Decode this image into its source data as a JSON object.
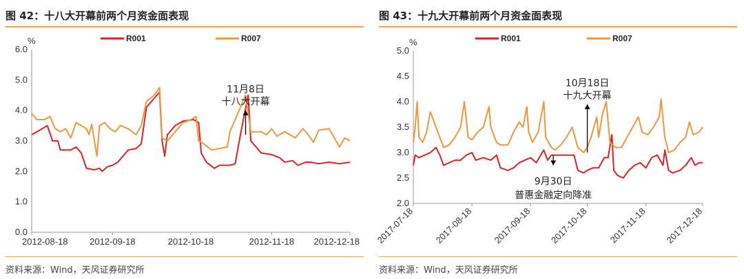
{
  "page": {
    "source_left": "资料来源：Wind，天风证券研究所",
    "source_right": "资料来源：Wind，天风证券研究所"
  },
  "colors": {
    "r001": "#e31e24",
    "r007": "#f0963c",
    "rule": "#f0a050"
  },
  "chart_data": [
    {
      "type": "line",
      "title": "图 42：十八大开幕前两个月资金面表现",
      "ylabel": "%",
      "ylim": [
        0,
        6
      ],
      "yticks": [
        "0.0",
        "1.0",
        "2.0",
        "3.0",
        "4.0",
        "5.0",
        "6.0"
      ],
      "x_start": "2012-08-18",
      "x_end": "2012-12-18",
      "xticks": [
        "2012-08-18",
        "2012-09-18",
        "2012-10-18",
        "2012-11-18",
        "2012-12-18"
      ],
      "annotation": {
        "date": "2012-11-08",
        "lines": [
          "11月8日",
          "十八大开幕"
        ],
        "direction": "up",
        "y_from": 3.2,
        "y_to": 4.0
      },
      "series": [
        {
          "name": "R001",
          "color": "#e31e24",
          "points": [
            [
              "2012-08-18",
              3.2
            ],
            [
              "2012-08-20",
              3.3
            ],
            [
              "2012-08-24",
              3.5
            ],
            [
              "2012-08-26",
              3.0
            ],
            [
              "2012-08-28",
              3.0
            ],
            [
              "2012-08-29",
              2.7
            ],
            [
              "2012-09-02",
              2.7
            ],
            [
              "2012-09-04",
              2.8
            ],
            [
              "2012-09-06",
              2.6
            ],
            [
              "2012-09-08",
              2.1
            ],
            [
              "2012-09-11",
              2.05
            ],
            [
              "2012-09-13",
              2.1
            ],
            [
              "2012-09-14",
              2.0
            ],
            [
              "2012-09-16",
              2.15
            ],
            [
              "2012-09-18",
              2.2
            ],
            [
              "2012-09-20",
              2.3
            ],
            [
              "2012-09-22",
              2.5
            ],
            [
              "2012-09-24",
              2.7
            ],
            [
              "2012-09-27",
              2.75
            ],
            [
              "2012-09-29",
              2.9
            ],
            [
              "2012-10-01",
              4.1
            ],
            [
              "2012-10-04",
              4.4
            ],
            [
              "2012-10-06",
              4.6
            ],
            [
              "2012-10-07",
              3.0
            ],
            [
              "2012-10-08",
              2.5
            ],
            [
              "2012-10-09",
              3.2
            ],
            [
              "2012-10-12",
              3.5
            ],
            [
              "2012-10-15",
              3.65
            ],
            [
              "2012-10-19",
              3.7
            ],
            [
              "2012-10-21",
              3.6
            ],
            [
              "2012-10-22",
              2.6
            ],
            [
              "2012-10-24",
              2.3
            ],
            [
              "2012-10-27",
              2.1
            ],
            [
              "2012-10-29",
              2.2
            ],
            [
              "2012-11-02",
              2.2
            ],
            [
              "2012-11-04",
              2.25
            ],
            [
              "2012-11-06",
              3.2
            ],
            [
              "2012-11-09",
              4.5
            ],
            [
              "2012-11-10",
              3.0
            ],
            [
              "2012-11-12",
              2.8
            ],
            [
              "2012-11-14",
              2.6
            ],
            [
              "2012-11-18",
              2.55
            ],
            [
              "2012-11-21",
              2.45
            ],
            [
              "2012-11-23",
              2.3
            ],
            [
              "2012-11-26",
              2.35
            ],
            [
              "2012-11-28",
              2.2
            ],
            [
              "2012-12-01",
              2.3
            ],
            [
              "2012-12-03",
              2.3
            ],
            [
              "2012-12-06",
              2.25
            ],
            [
              "2012-12-10",
              2.3
            ],
            [
              "2012-12-14",
              2.25
            ],
            [
              "2012-12-18",
              2.3
            ]
          ]
        },
        {
          "name": "R007",
          "color": "#f0963c",
          "points": [
            [
              "2012-08-18",
              3.9
            ],
            [
              "2012-08-20",
              3.7
            ],
            [
              "2012-08-23",
              3.7
            ],
            [
              "2012-08-25",
              3.8
            ],
            [
              "2012-08-27",
              3.4
            ],
            [
              "2012-08-29",
              3.3
            ],
            [
              "2012-08-31",
              3.4
            ],
            [
              "2012-09-02",
              3.1
            ],
            [
              "2012-09-04",
              3.6
            ],
            [
              "2012-09-06",
              3.5
            ],
            [
              "2012-09-08",
              3.4
            ],
            [
              "2012-09-09",
              3.2
            ],
            [
              "2012-09-10",
              3.55
            ],
            [
              "2012-09-12",
              2.5
            ],
            [
              "2012-09-13",
              3.5
            ],
            [
              "2012-09-15",
              3.6
            ],
            [
              "2012-09-17",
              3.4
            ],
            [
              "2012-09-19",
              3.3
            ],
            [
              "2012-09-21",
              3.5
            ],
            [
              "2012-09-24",
              3.4
            ],
            [
              "2012-09-27",
              3.2
            ],
            [
              "2012-09-29",
              3.5
            ],
            [
              "2012-10-01",
              4.3
            ],
            [
              "2012-10-04",
              4.5
            ],
            [
              "2012-10-06",
              4.75
            ],
            [
              "2012-10-07",
              3.1
            ],
            [
              "2012-10-09",
              3.0
            ],
            [
              "2012-10-12",
              3.3
            ],
            [
              "2012-10-15",
              3.6
            ],
            [
              "2012-10-18",
              3.7
            ],
            [
              "2012-10-20",
              3.8
            ],
            [
              "2012-10-21",
              3.0
            ],
            [
              "2012-10-23",
              2.9
            ],
            [
              "2012-10-26",
              2.7
            ],
            [
              "2012-10-29",
              2.75
            ],
            [
              "2012-11-01",
              2.8
            ],
            [
              "2012-11-02",
              3.3
            ],
            [
              "2012-11-05",
              3.9
            ],
            [
              "2012-11-08",
              4.5
            ],
            [
              "2012-11-10",
              3.3
            ],
            [
              "2012-11-14",
              3.3
            ],
            [
              "2012-11-16",
              3.2
            ],
            [
              "2012-11-18",
              3.4
            ],
            [
              "2012-11-20",
              3.15
            ],
            [
              "2012-11-23",
              3.3
            ],
            [
              "2012-11-25",
              3.2
            ],
            [
              "2012-11-27",
              3.1
            ],
            [
              "2012-11-30",
              3.4
            ],
            [
              "2012-12-02",
              3.2
            ],
            [
              "2012-12-04",
              2.95
            ],
            [
              "2012-12-06",
              3.35
            ],
            [
              "2012-12-10",
              3.4
            ],
            [
              "2012-12-12",
              3.1
            ],
            [
              "2012-12-14",
              2.8
            ],
            [
              "2012-12-16",
              3.1
            ],
            [
              "2012-12-18",
              3.0
            ]
          ]
        }
      ]
    },
    {
      "type": "line",
      "title": "图 43：十九大开幕前两个月资金面表现",
      "ylabel": "%",
      "ylim": [
        2.0,
        5.0
      ],
      "yticks": [
        "2.0",
        "2.5",
        "3.0",
        "3.5",
        "4.0",
        "4.5",
        "5.0"
      ],
      "x_start": "2017-07-18",
      "x_end": "2017-12-18",
      "xticks": [
        "2017-07-18",
        "2017-08-18",
        "2017-09-18",
        "2017-10-18",
        "2017-11-18",
        "2017-12-18"
      ],
      "annotation_up": {
        "date": "2017-10-18",
        "lines": [
          "10月18日",
          "十九大开幕"
        ],
        "direction": "up",
        "y_from": 3.0,
        "y_to": 3.95
      },
      "annotation_down": {
        "date": "2017-09-30",
        "lines": [
          "9月30日",
          "普惠金融定向降准"
        ],
        "direction": "down",
        "y_from": 2.95,
        "y_to": 2.75
      },
      "series": [
        {
          "name": "R001",
          "color": "#e31e24",
          "points": [
            [
              "2017-07-18",
              2.75
            ],
            [
              "2017-07-19",
              2.95
            ],
            [
              "2017-07-21",
              2.9
            ],
            [
              "2017-07-24",
              2.95
            ],
            [
              "2017-07-27",
              3.0
            ],
            [
              "2017-07-30",
              3.1
            ],
            [
              "2017-08-01",
              2.95
            ],
            [
              "2017-08-03",
              2.75
            ],
            [
              "2017-08-06",
              2.8
            ],
            [
              "2017-08-09",
              2.85
            ],
            [
              "2017-08-12",
              2.85
            ],
            [
              "2017-08-15",
              2.95
            ],
            [
              "2017-08-18",
              3.0
            ],
            [
              "2017-08-20",
              2.85
            ],
            [
              "2017-08-24",
              2.9
            ],
            [
              "2017-08-28",
              2.85
            ],
            [
              "2017-08-31",
              2.95
            ],
            [
              "2017-09-02",
              2.7
            ],
            [
              "2017-09-06",
              2.65
            ],
            [
              "2017-09-09",
              2.7
            ],
            [
              "2017-09-12",
              2.8
            ],
            [
              "2017-09-15",
              2.85
            ],
            [
              "2017-09-18",
              2.9
            ],
            [
              "2017-09-21",
              2.8
            ],
            [
              "2017-09-25",
              3.05
            ],
            [
              "2017-09-27",
              2.85
            ],
            [
              "2017-09-29",
              2.95
            ],
            [
              "2017-10-01",
              2.95
            ],
            [
              "2017-10-05",
              2.95
            ],
            [
              "2017-10-08",
              2.95
            ],
            [
              "2017-10-11",
              2.95
            ],
            [
              "2017-10-13",
              2.65
            ],
            [
              "2017-10-16",
              2.6
            ],
            [
              "2017-10-18",
              2.65
            ],
            [
              "2017-10-21",
              2.7
            ],
            [
              "2017-10-24",
              2.7
            ],
            [
              "2017-10-27",
              2.9
            ],
            [
              "2017-10-29",
              2.9
            ],
            [
              "2017-10-31",
              3.35
            ],
            [
              "2017-11-01",
              2.65
            ],
            [
              "2017-11-03",
              2.55
            ],
            [
              "2017-11-06",
              2.5
            ],
            [
              "2017-11-09",
              2.65
            ],
            [
              "2017-11-12",
              2.75
            ],
            [
              "2017-11-15",
              2.8
            ],
            [
              "2017-11-18",
              2.7
            ],
            [
              "2017-11-21",
              2.9
            ],
            [
              "2017-11-24",
              2.95
            ],
            [
              "2017-11-27",
              2.75
            ],
            [
              "2017-11-28",
              3.05
            ],
            [
              "2017-11-30",
              2.65
            ],
            [
              "2017-12-02",
              2.6
            ],
            [
              "2017-12-06",
              2.65
            ],
            [
              "2017-12-09",
              2.75
            ],
            [
              "2017-12-12",
              2.9
            ],
            [
              "2017-12-14",
              2.75
            ],
            [
              "2017-12-16",
              2.8
            ],
            [
              "2017-12-18",
              2.8
            ]
          ]
        },
        {
          "name": "R007",
          "color": "#f0963c",
          "points": [
            [
              "2017-07-18",
              3.2
            ],
            [
              "2017-07-19",
              3.5
            ],
            [
              "2017-07-20",
              4.0
            ],
            [
              "2017-07-21",
              3.3
            ],
            [
              "2017-07-23",
              3.2
            ],
            [
              "2017-07-25",
              3.4
            ],
            [
              "2017-07-27",
              3.8
            ],
            [
              "2017-07-28",
              3.7
            ],
            [
              "2017-07-30",
              3.5
            ],
            [
              "2017-08-01",
              3.3
            ],
            [
              "2017-08-03",
              3.1
            ],
            [
              "2017-08-06",
              3.15
            ],
            [
              "2017-08-09",
              3.3
            ],
            [
              "2017-08-12",
              3.5
            ],
            [
              "2017-08-14",
              4.0
            ],
            [
              "2017-08-16",
              3.3
            ],
            [
              "2017-08-18",
              3.25
            ],
            [
              "2017-08-21",
              3.4
            ],
            [
              "2017-08-24",
              3.5
            ],
            [
              "2017-08-27",
              3.9
            ],
            [
              "2017-08-28",
              3.5
            ],
            [
              "2017-08-31",
              3.2
            ],
            [
              "2017-09-02",
              3.15
            ],
            [
              "2017-09-06",
              3.15
            ],
            [
              "2017-09-09",
              3.4
            ],
            [
              "2017-09-12",
              3.6
            ],
            [
              "2017-09-14",
              3.5
            ],
            [
              "2017-09-16",
              3.9
            ],
            [
              "2017-09-17",
              3.4
            ],
            [
              "2017-09-19",
              3.2
            ],
            [
              "2017-09-22",
              3.4
            ],
            [
              "2017-09-25",
              4.0
            ],
            [
              "2017-09-26",
              3.3
            ],
            [
              "2017-09-29",
              3.1
            ],
            [
              "2017-10-01",
              3.05
            ],
            [
              "2017-10-04",
              3.15
            ],
            [
              "2017-10-07",
              3.3
            ],
            [
              "2017-10-10",
              3.5
            ],
            [
              "2017-10-13",
              3.1
            ],
            [
              "2017-10-16",
              3.0
            ],
            [
              "2017-10-18",
              3.1
            ],
            [
              "2017-10-20",
              3.3
            ],
            [
              "2017-10-23",
              3.7
            ],
            [
              "2017-10-24",
              3.3
            ],
            [
              "2017-10-26",
              3.75
            ],
            [
              "2017-10-28",
              4.0
            ],
            [
              "2017-10-30",
              3.2
            ],
            [
              "2017-11-02",
              3.1
            ],
            [
              "2017-11-05",
              3.1
            ],
            [
              "2017-11-08",
              3.3
            ],
            [
              "2017-11-11",
              3.5
            ],
            [
              "2017-11-14",
              3.7
            ],
            [
              "2017-11-16",
              3.4
            ],
            [
              "2017-11-19",
              3.35
            ],
            [
              "2017-11-22",
              3.5
            ],
            [
              "2017-11-25",
              3.7
            ],
            [
              "2017-11-26",
              4.05
            ],
            [
              "2017-11-28",
              3.3
            ],
            [
              "2017-11-30",
              3.0
            ],
            [
              "2017-12-03",
              3.05
            ],
            [
              "2017-12-06",
              3.2
            ],
            [
              "2017-12-09",
              3.3
            ],
            [
              "2017-12-11",
              3.6
            ],
            [
              "2017-12-13",
              3.35
            ],
            [
              "2017-12-16",
              3.4
            ],
            [
              "2017-12-18",
              3.5
            ]
          ]
        }
      ]
    }
  ]
}
